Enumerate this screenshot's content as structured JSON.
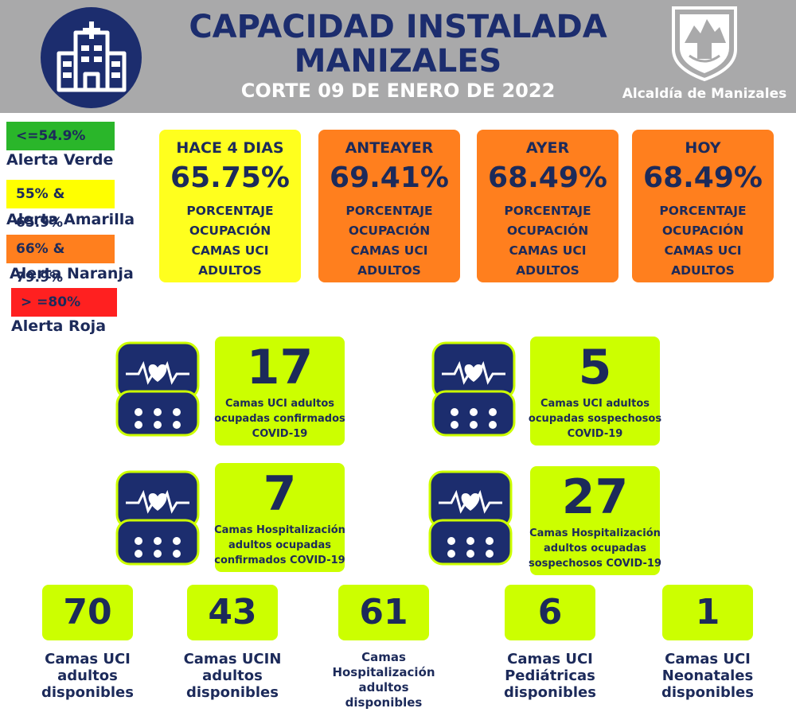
{
  "header": {
    "title_line1": "CAPACIDAD INSTALADA",
    "title_line2": "MANIZALES",
    "subtitle": "CORTE 09 DE ENERO DE 2022",
    "logo_caption": "Alcaldía de Manizales",
    "icon": "hospital-building-icon"
  },
  "legend": [
    {
      "range": "<=54.9%",
      "label": "Alerta Verde",
      "color": "#2ab62a"
    },
    {
      "range": "55% & 65.9%",
      "label": "Alerta Amarilla",
      "color": "#ffff00"
    },
    {
      "range": "66% & 79.9%",
      "label": "Alerta Naranja",
      "color": "#ff7f1e"
    },
    {
      "range": "> =80%",
      "label": "Alerta Roja",
      "color": "#ff2020"
    }
  ],
  "occupancy": [
    {
      "period": "HACE 4 DIAS",
      "percent": "65.75%",
      "desc1": "PORCENTAJE",
      "desc2": "OCUPACIÓN",
      "desc3": "CAMAS UCI",
      "desc4": "ADULTOS",
      "color": "#ffff1e"
    },
    {
      "period": "ANTEAYER",
      "percent": "69.41%",
      "desc1": "PORCENTAJE",
      "desc2": "OCUPACIÓN",
      "desc3": "CAMAS UCI",
      "desc4": "ADULTOS",
      "color": "#ff7f1e"
    },
    {
      "period": "AYER",
      "percent": "68.49%",
      "desc1": "PORCENTAJE",
      "desc2": "OCUPACIÓN",
      "desc3": "CAMAS UCI",
      "desc4": "ADULTOS",
      "color": "#ff7f1e"
    },
    {
      "period": "HOY",
      "percent": "68.49%",
      "desc1": "PORCENTAJE",
      "desc2": "OCUPACIÓN",
      "desc3": "CAMAS UCI",
      "desc4": "ADULTOS",
      "color": "#ff7f1e"
    }
  ],
  "stats": [
    {
      "value": "17",
      "line1": "Camas UCI adultos",
      "line2": "ocupadas confirmados",
      "line3": "COVID-19"
    },
    {
      "value": "5",
      "line1": "Camas UCI adultos",
      "line2": "ocupadas sospechosos",
      "line3": "COVID-19"
    },
    {
      "value": "7",
      "line1": "Camas  Hospitalización",
      "line2": "adultos ocupadas",
      "line3": "confirmados COVID-19"
    },
    {
      "value": "27",
      "line1": "Camas  Hospitalización",
      "line2": "adultos ocupadas",
      "line3": "sospechosos COVID-19"
    }
  ],
  "monitor_icon": "heart-monitor-icon",
  "available": [
    {
      "value": "70",
      "line1": "Camas UCI",
      "line2": "adultos",
      "line3": "disponibles",
      "line4": ""
    },
    {
      "value": "43",
      "line1": "Camas UCIN",
      "line2": "adultos",
      "line3": "disponibles",
      "line4": ""
    },
    {
      "value": "61",
      "line1": "Camas",
      "line2": "Hospitalización",
      "line3": "adultos",
      "line4": "disponibles"
    },
    {
      "value": "6",
      "line1": "Camas  UCI",
      "line2": "Pediátricas",
      "line3": "disponibles",
      "line4": ""
    },
    {
      "value": "1",
      "line1": "Camas  UCI",
      "line2": "Neonatales",
      "line3": "disponibles",
      "line4": ""
    }
  ],
  "colors": {
    "navy": "#1c2d6e",
    "lime": "#ccff00",
    "header_gray": "#a9a9aa"
  }
}
